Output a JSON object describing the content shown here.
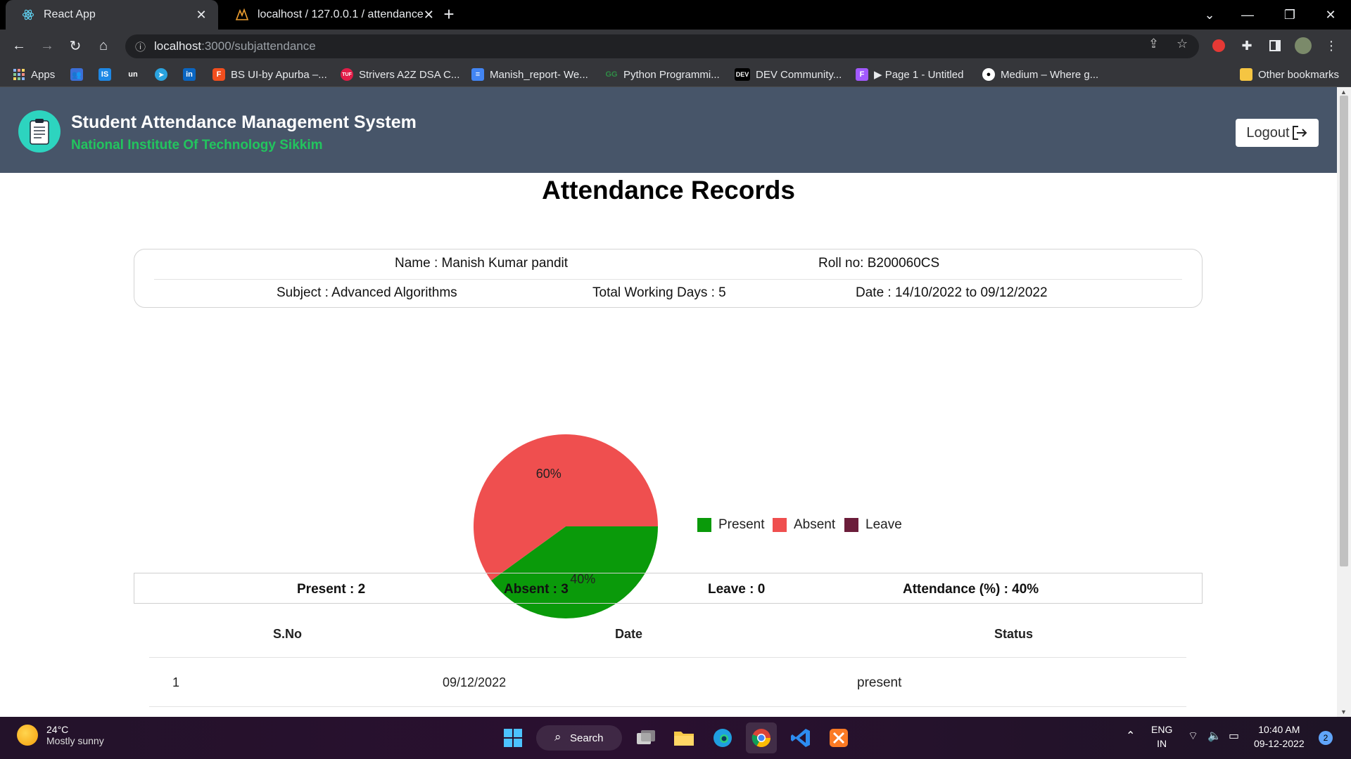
{
  "browser": {
    "tabs": [
      {
        "title": "React App",
        "active": true
      },
      {
        "title": "localhost / 127.0.0.1 / attendance",
        "active": false
      }
    ],
    "url_host": "localhost",
    "url_path": ":3000/subjattendance",
    "bookmarks": [
      {
        "label": "Apps",
        "icon": "apps-grid-icon",
        "color": "#4285f4"
      },
      {
        "label": "",
        "icon": "people-icon",
        "color": "#5b8def"
      },
      {
        "label": "",
        "icon": "is-icon",
        "color": "#1e88e5"
      },
      {
        "label": "",
        "icon": "un-icon",
        "color": "#35363a"
      },
      {
        "label": "",
        "icon": "telegram-icon",
        "color": "#2aa3df"
      },
      {
        "label": "",
        "icon": "linkedin-icon",
        "color": "#0a66c2"
      },
      {
        "label": "BS UI-by Apurba –...",
        "icon": "figma-icon",
        "color": "#f24e1e"
      },
      {
        "label": "Strivers A2Z DSA C...",
        "icon": "tuf-icon",
        "color": "#e11d48"
      },
      {
        "label": "Manish_report- We...",
        "icon": "docs-icon",
        "color": "#4285f4"
      },
      {
        "label": "Python Programmi...",
        "icon": "gfg-icon",
        "color": "#2f8d46"
      },
      {
        "label": "DEV Community...",
        "icon": "dev-icon",
        "color": "#000000"
      },
      {
        "label": "▶ Page 1 - Untitled",
        "icon": "figma-icon",
        "color": "#a259ff"
      },
      {
        "label": "Medium – Where g...",
        "icon": "medium-icon",
        "color": "#000000"
      }
    ],
    "other_bookmarks": "Other bookmarks"
  },
  "header": {
    "title": "Student Attendance Management System",
    "subtitle": "National Institute Of Technology Sikkim",
    "logout_label": "Logout"
  },
  "page": {
    "title": "Attendance Records"
  },
  "info": {
    "name": "Name : Manish Kumar pandit",
    "roll": "Roll no: B200060CS",
    "subject": "Subject : Advanced Algorithms",
    "working_days": "Total Working Days : 5",
    "date_range": "Date : 14/10/2022 to 09/12/2022"
  },
  "chart_data": {
    "type": "pie",
    "series": [
      {
        "name": "Present",
        "value": 40,
        "color": "#0a9a0a"
      },
      {
        "name": "Absent",
        "value": 60,
        "color": "#ef4f4f"
      },
      {
        "name": "Leave",
        "value": 0,
        "color": "#6b1d3a"
      }
    ],
    "labels": [
      "40%",
      "60%"
    ],
    "legend_position": "right"
  },
  "stats": {
    "present": "Present : 2",
    "absent": "Absent : 3",
    "leave": "Leave : 0",
    "percent": "Attendance (%) : 40%"
  },
  "table": {
    "headers": [
      "S.No",
      "Date",
      "Status"
    ],
    "rows": [
      {
        "sno": "1",
        "date": "09/12/2022",
        "status": "present"
      }
    ]
  },
  "taskbar": {
    "temp": "24°C",
    "weather": "Mostly sunny",
    "search_label": "Search",
    "lang1": "ENG",
    "lang2": "IN",
    "time": "10:40 AM",
    "date": "09-12-2022",
    "notif_count": "2"
  }
}
